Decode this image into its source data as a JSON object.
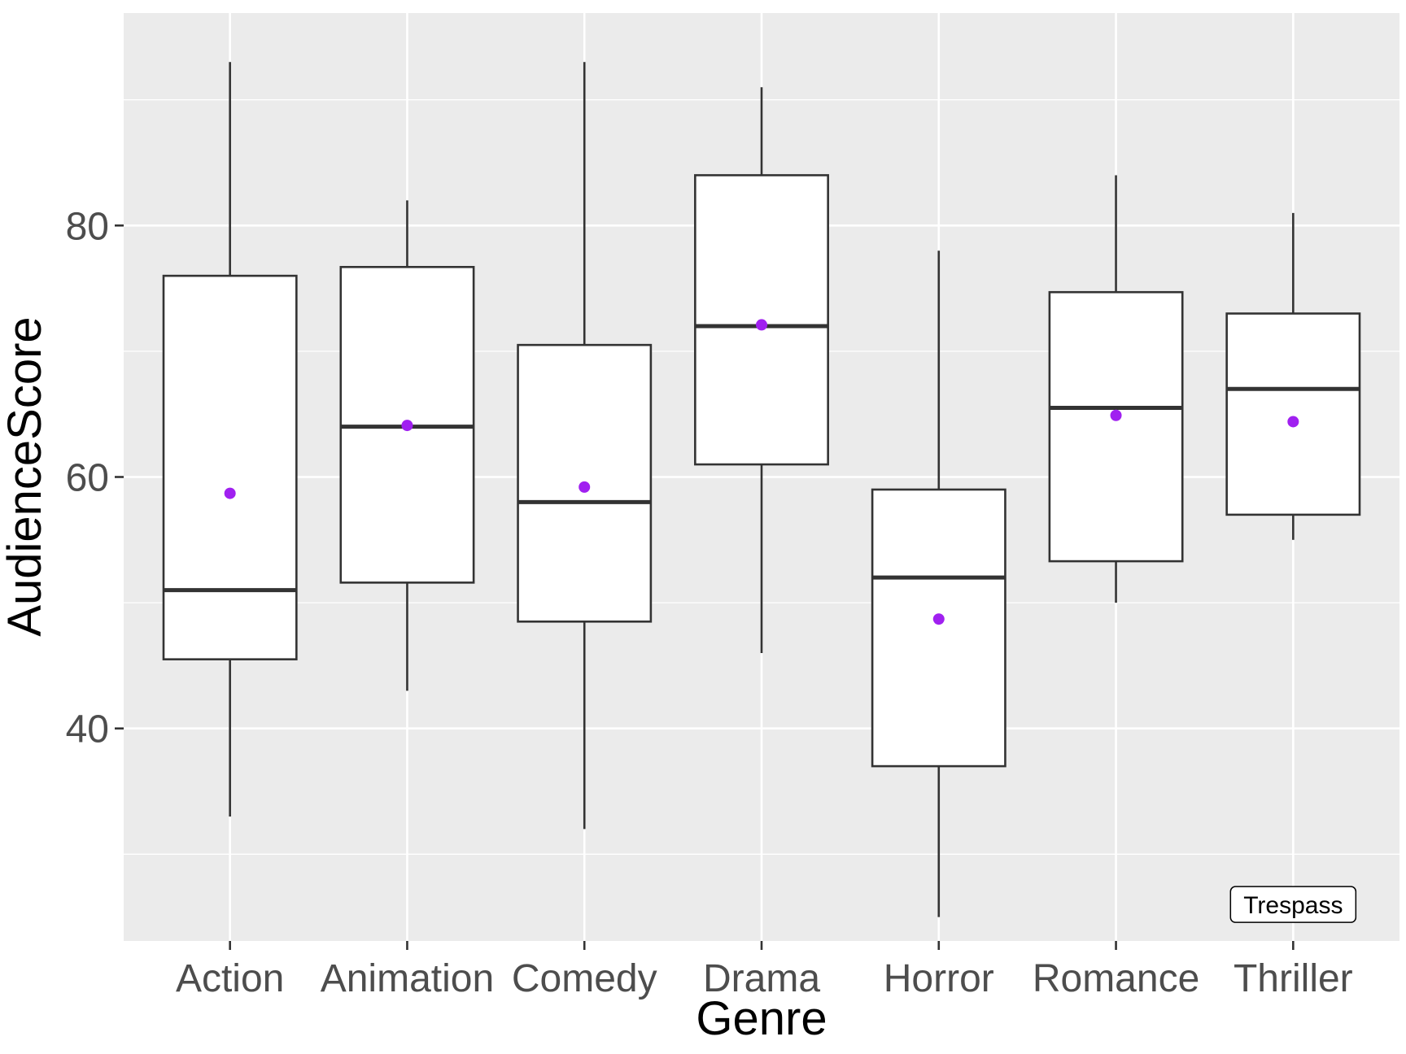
{
  "chart_data": {
    "type": "boxplot",
    "xlabel": "Genre",
    "ylabel": "AudienceScore",
    "categories": [
      "Action",
      "Animation",
      "Comedy",
      "Drama",
      "Horror",
      "Romance",
      "Thriller"
    ],
    "boxes": [
      {
        "category": "Action",
        "whisker_low": 33,
        "q1": 45.5,
        "median": 51,
        "q3": 76,
        "whisker_high": 93,
        "mean": 58.7
      },
      {
        "category": "Animation",
        "whisker_low": 43,
        "q1": 51.6,
        "median": 64,
        "q3": 76.7,
        "whisker_high": 82,
        "mean": 64.1
      },
      {
        "category": "Comedy",
        "whisker_low": 32,
        "q1": 48.5,
        "median": 58,
        "q3": 70.5,
        "whisker_high": 93,
        "mean": 59.2
      },
      {
        "category": "Drama",
        "whisker_low": 46,
        "q1": 61,
        "median": 72,
        "q3": 84,
        "whisker_high": 91,
        "mean": 72.1
      },
      {
        "category": "Horror",
        "whisker_low": 25,
        "q1": 37,
        "median": 52,
        "q3": 59,
        "whisker_high": 78,
        "mean": 48.7
      },
      {
        "category": "Romance",
        "whisker_low": 50,
        "q1": 53.3,
        "median": 65.5,
        "q3": 74.7,
        "whisker_high": 84,
        "mean": 64.9
      },
      {
        "category": "Thriller",
        "whisker_low": 55,
        "q1": 57,
        "median": 67,
        "q3": 73,
        "whisker_high": 81,
        "mean": 64.4
      }
    ],
    "yticks": [
      40,
      60,
      80
    ],
    "ylim": [
      23.1,
      96.9
    ],
    "grid": true,
    "annotation": {
      "text": "Trespass",
      "category": "Thriller",
      "y": 26
    },
    "colors": {
      "panel": "#ebebeb",
      "grid": "#ffffff",
      "box_fill": "#ffffff",
      "box_stroke": "#333333",
      "mean_point": "#a020f0"
    }
  }
}
